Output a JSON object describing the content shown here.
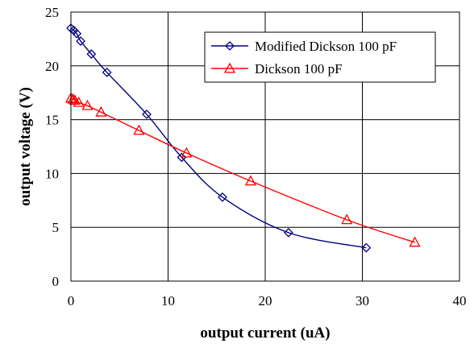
{
  "chart_data": {
    "type": "line",
    "title": "",
    "xlabel": "output current (uA)",
    "ylabel": "output voltage (V)",
    "xlim": [
      0,
      40
    ],
    "ylim": [
      0,
      25
    ],
    "xticks": [
      "0",
      "10",
      "20",
      "30",
      "40"
    ],
    "yticks": [
      "0",
      "5",
      "10",
      "15",
      "20",
      "25"
    ],
    "grid": true,
    "legend_position": "top-right",
    "series": [
      {
        "name": "Modified Dickson 100 pF",
        "color": "#000080",
        "marker": "diamond",
        "x": [
          0.0,
          0.3,
          0.6,
          1.0,
          2.1,
          3.7,
          7.8,
          11.4,
          15.6,
          22.4,
          30.4
        ],
        "y": [
          23.5,
          23.3,
          23.0,
          22.3,
          21.1,
          19.4,
          15.5,
          11.5,
          7.8,
          4.5,
          3.1
        ]
      },
      {
        "name": "Dickson 100 pF",
        "color": "#ff0000",
        "marker": "triangle",
        "x": [
          0.0,
          0.2,
          0.4,
          0.8,
          1.7,
          3.1,
          7.0,
          11.9,
          18.5,
          28.4,
          35.4
        ],
        "y": [
          17.0,
          16.9,
          16.8,
          16.6,
          16.3,
          15.7,
          14.0,
          11.9,
          9.3,
          5.7,
          3.6
        ]
      }
    ]
  }
}
